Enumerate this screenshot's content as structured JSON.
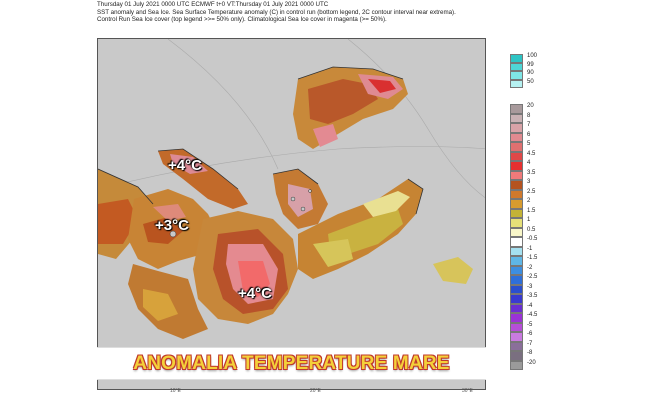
{
  "header": {
    "line1": "Thursday 01 July 2021 0000 UTC  ECMWF  t+0  VT:Thursday 01 July 2021 0000 UTC",
    "line2": "SST anomaly and Sea Ice. Sea Surface Temperature anomaly (C) in control run (bottom legend, 2C contour interval near extrema).",
    "line3": "Control Run Sea Ice cover (top legend >>= 50% only). Climatological Sea Ice cover in magenta (>= 50%)."
  },
  "map": {
    "annotations": [
      "+4°C",
      "+3°C",
      "+4°C"
    ],
    "banner": "ANOMALIA TEMPERATURE MARE",
    "lon_labels": [
      "10°E",
      "20°E",
      "30°E"
    ],
    "land_color": "#c9c9c9"
  },
  "ice_legend": {
    "labels": [
      "100",
      "99",
      "90",
      "50"
    ],
    "colors": [
      "#2ec4c4",
      "#4fd6d6",
      "#7fe6e6",
      "#b6f2f2"
    ]
  },
  "sst_legend": {
    "labels": [
      "20",
      "8",
      "7",
      "6",
      "5",
      "4.5",
      "4",
      "3.5",
      "3",
      "2.5",
      "2",
      "1.5",
      "1",
      "0.5",
      "-0.5",
      "-1",
      "-1.5",
      "-2",
      "-2.5",
      "-3",
      "-3.5",
      "-4",
      "-4.5",
      "-5",
      "-6",
      "-7",
      "-8",
      "-20"
    ],
    "colors": [
      "#a89a9c",
      "#c9b2b5",
      "#d8a3a8",
      "#e08a90",
      "#e07070",
      "#e04848",
      "#e63030",
      "#f07a7a",
      "#b5531f",
      "#d0792c",
      "#d79b2e",
      "#c4b336",
      "#e6e078",
      "#f8f6c8",
      "#ffffff",
      "#a5e0f0",
      "#5fb6e6",
      "#3d8ee0",
      "#2f6fd9",
      "#2b4fce",
      "#3a3ad0",
      "#6a2fd3",
      "#9a33d6",
      "#b64fd8",
      "#c97be0",
      "#8a6f9a",
      "#7a6f80",
      "#9a9a9a"
    ]
  }
}
